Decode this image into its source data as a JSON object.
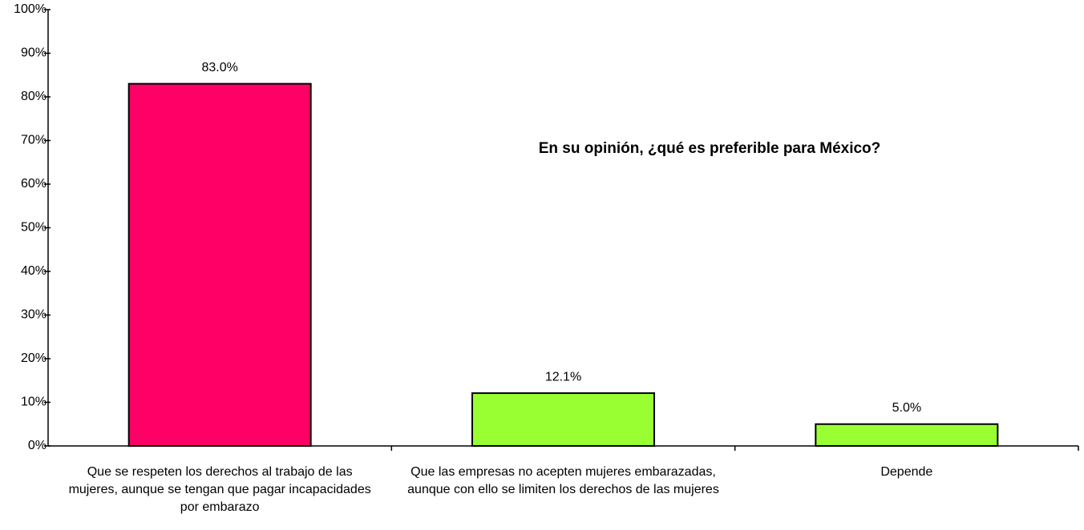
{
  "chart_data": {
    "type": "bar",
    "title": "En su opinión, ¿qué es preferible para México?",
    "categories": [
      "Que se respeten los derechos al trabajo de las mujeres, aunque se tengan que pagar incapacidades por embarazo",
      "Que las empresas no acepten mujeres embarazadas, aunque con ello se limiten los derechos de las mujeres",
      "Depende"
    ],
    "values": [
      83.0,
      12.1,
      5.0
    ],
    "value_labels": [
      "83.0%",
      "12.1%",
      "5.0%"
    ],
    "colors": [
      "#ff0066",
      "#99ff33",
      "#99ff33"
    ],
    "ylim": [
      0,
      100
    ],
    "yticks": [
      {
        "value": 0,
        "label": "0%"
      },
      {
        "value": 10,
        "label": "10%"
      },
      {
        "value": 20,
        "label": "20%"
      },
      {
        "value": 30,
        "label": "30%"
      },
      {
        "value": 40,
        "label": "40%"
      },
      {
        "value": 50,
        "label": "50%"
      },
      {
        "value": 60,
        "label": "60%"
      },
      {
        "value": 70,
        "label": "70%"
      },
      {
        "value": 80,
        "label": "80%"
      },
      {
        "value": 90,
        "label": "90%"
      },
      {
        "value": 100,
        "label": "100%"
      }
    ],
    "grid": false
  }
}
